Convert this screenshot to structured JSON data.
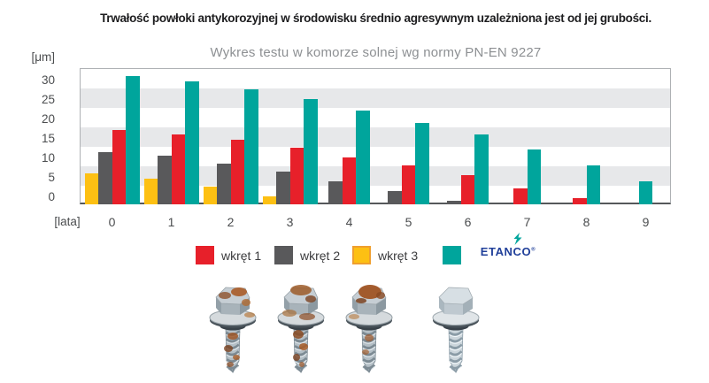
{
  "header": {
    "title": "Trwałość powłoki antykorozyjnej w środowisku średnio agresywnym uzależniona jest od jej grubości.",
    "subtitle": "Wykres testu w komorze solnej wg normy PN-EN 9227"
  },
  "chart_data": {
    "type": "bar",
    "title": "Trwałość powłoki antykorozyjnej w środowisku średnio agresywnym uzależniona jest od jej grubości.",
    "subtitle": "Wykres testu w komorze solnej wg normy PN-EN 9227",
    "y_axis_unit": "[μm]",
    "x_axis_unit": "[lata]",
    "categories": [
      "0",
      "1",
      "2",
      "3",
      "4",
      "5",
      "6",
      "7",
      "8",
      "9"
    ],
    "y_ticks": [
      0,
      5,
      10,
      15,
      20,
      25,
      30
    ],
    "ylim": [
      0,
      35
    ],
    "grid": "horizontal alternating 5-unit gray/white stripes",
    "legend_position": "bottom",
    "display_order": [
      "wkręt 3",
      "wkręt 2",
      "wkręt 1",
      "ETANCO"
    ],
    "series": [
      {
        "name": "wkręt 1",
        "color": "#e7202a",
        "values": [
          19,
          18,
          16.5,
          14.5,
          12,
          10,
          7.5,
          4,
          1.5,
          0
        ]
      },
      {
        "name": "wkręt 2",
        "color": "#59595b",
        "values": [
          13.5,
          12.5,
          10.5,
          8.5,
          6,
          3.5,
          1,
          0,
          0,
          0
        ]
      },
      {
        "name": "wkręt 3",
        "color": "#fdc013",
        "values": [
          8,
          6.5,
          4.5,
          2,
          0,
          0,
          0,
          0,
          0,
          0
        ]
      },
      {
        "name": "ETANCO",
        "color": "#00a59c",
        "values": [
          33,
          31.5,
          29.5,
          27,
          24,
          21,
          18,
          14,
          10,
          6
        ]
      }
    ]
  },
  "legend": {
    "items": [
      {
        "label": "wkręt 1",
        "color": "#e7202a"
      },
      {
        "label": "wkręt 2",
        "color": "#59595b"
      },
      {
        "label": "wkręt 3",
        "color": "#fdc013",
        "border": "#ef9f2e"
      },
      {
        "label": "ETANCO",
        "color": "#00a59c",
        "logo": true,
        "reg_mark": "®"
      }
    ]
  },
  "colors": {
    "red": "#e7202a",
    "gray": "#59595b",
    "yellow": "#fdc013",
    "teal": "#00a59c",
    "navy": "#21409a",
    "stripe": "#e7e8ea"
  },
  "screws": [
    {
      "corroded": true
    },
    {
      "corroded": true
    },
    {
      "corroded": true
    },
    {
      "corroded": false
    }
  ]
}
